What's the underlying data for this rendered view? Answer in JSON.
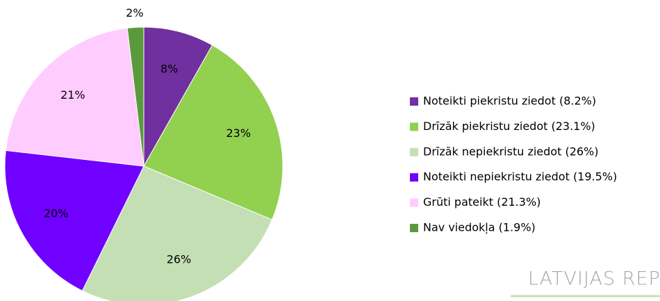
{
  "chart_data": {
    "type": "pie",
    "categories": [
      "Noteikti piekristu ziedot (8.2%)",
      "Drīzāk piekristu ziedot (23.1%)",
      "Drīzāk nepiekristu ziedot (26%)",
      "Noteikti nepiekristu ziedot (19.5%)",
      "Grūti pateikt (21.3%)",
      "Nav viedokļa (1.9%)"
    ],
    "values": [
      8.2,
      23.1,
      26,
      19.5,
      21.3,
      1.9
    ],
    "value_labels": [
      "8%",
      "23%",
      "26%",
      "20%",
      "21%",
      "2%"
    ],
    "colors": [
      "#7030a0",
      "#92d050",
      "#c4dfb4",
      "#7000ff",
      "#ffccff",
      "#5b9a3c"
    ],
    "legend": "right",
    "annotation": "LATVIJAS REPUBL"
  }
}
